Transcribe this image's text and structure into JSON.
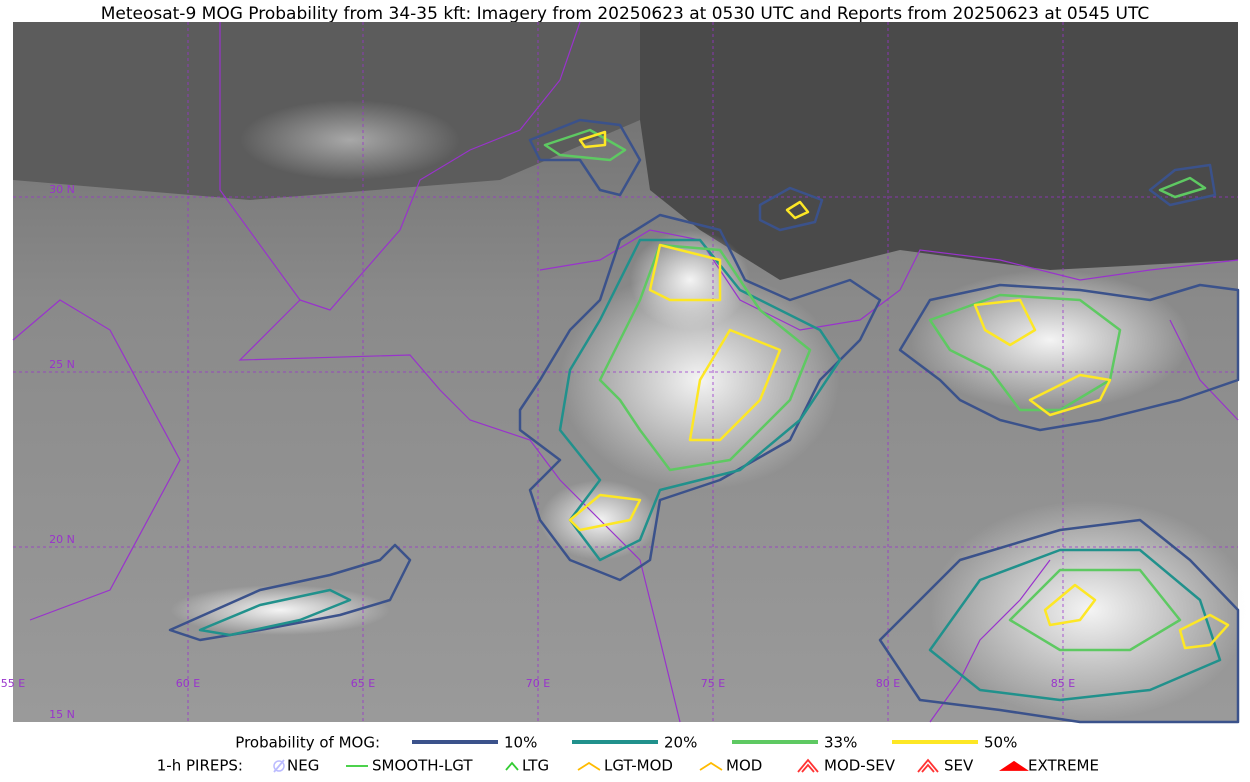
{
  "title": "Meteosat-9 MOG Probability from 34-35 kft: Imagery from 20250623 at 0530 UTC and Reports from 20250623 at 0545 UTC",
  "map": {
    "longitude_labels": [
      "55 E",
      "60 E",
      "65 E",
      "70 E",
      "75 E",
      "80 E",
      "85 E"
    ],
    "latitude_labels": [
      "30 N",
      "25 N",
      "20 N",
      "15 N"
    ]
  },
  "legend": {
    "probability": {
      "label": "Probability of MOG:",
      "levels": [
        "10%",
        "20%",
        "33%",
        "50%"
      ]
    },
    "pireps": {
      "label": "1-h PIREPS:",
      "items": [
        "NEG",
        "SMOOTH-LGT",
        "LTG",
        "LGT-MOD",
        "MOD",
        "MOD-SEV",
        "SEV",
        "EXTREME"
      ]
    }
  }
}
